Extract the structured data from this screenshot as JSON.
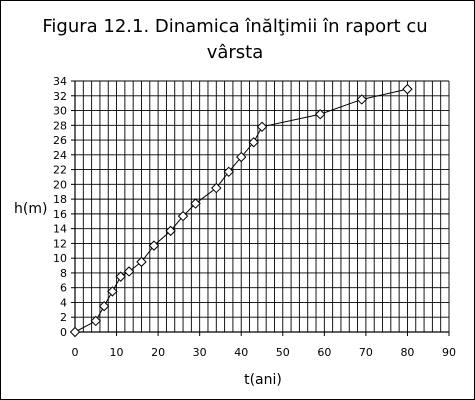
{
  "chart_data": {
    "type": "line",
    "title": "Figura 12.1. Dinamica înălţimii în raport cu vârsta",
    "xlabel": "t(ani)",
    "ylabel": "h(m)",
    "xlim": [
      0,
      90
    ],
    "ylim": [
      0,
      34
    ],
    "x_ticks": [
      0,
      10,
      20,
      30,
      40,
      50,
      60,
      70,
      80,
      90
    ],
    "y_ticks": [
      0,
      2,
      4,
      6,
      8,
      10,
      12,
      14,
      16,
      18,
      20,
      22,
      24,
      26,
      28,
      30,
      32,
      34
    ],
    "x_minor_step": 2,
    "grid": true,
    "legend": "none",
    "marker": "diamond",
    "series": [
      {
        "color": "#000000",
        "x": [
          0,
          5,
          7,
          9,
          11,
          13,
          16,
          19,
          23,
          26,
          29,
          34,
          37,
          40,
          43,
          45,
          59,
          69,
          80
        ],
        "y": [
          0,
          1.5,
          3.5,
          5.5,
          7.5,
          8.2,
          9.5,
          11.7,
          13.7,
          15.7,
          17.4,
          19.5,
          21.7,
          23.7,
          25.7,
          27.8,
          29.5,
          31.5,
          32.9
        ]
      }
    ]
  }
}
